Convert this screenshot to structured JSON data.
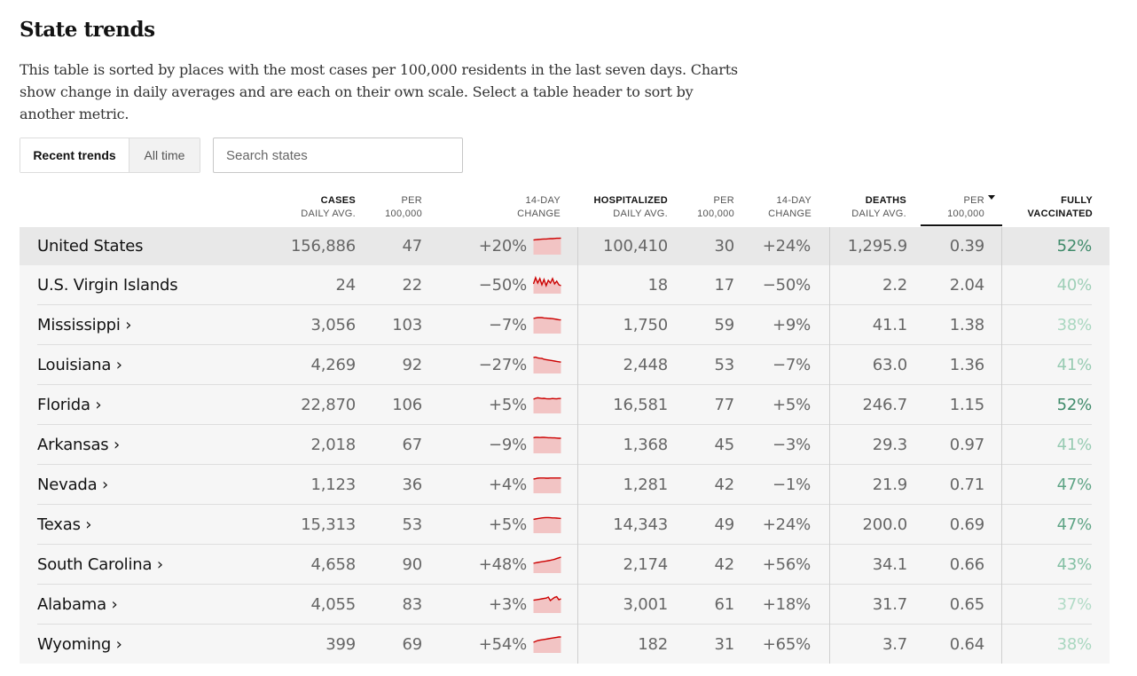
{
  "title": "State trends",
  "intro": "This table is sorted by places with the most cases per 100,000 residents in the last seven days. Charts show change in daily averages and are each on their own scale. Select a table header to sort by another metric.",
  "toggle": {
    "recent": "Recent trends",
    "all_time": "All time"
  },
  "search": {
    "placeholder": "Search states"
  },
  "headers": {
    "cases_1": "Cases",
    "cases_2": "Daily avg.",
    "per1_1": "Per",
    "per1_2": "100,000",
    "chg1_1": "14-day",
    "chg1_2": "change",
    "hosp_1": "Hospitalized",
    "hosp_2": "Daily avg.",
    "per2_1": "Per",
    "per2_2": "100,000",
    "chg2_1": "14-day",
    "chg2_2": "change",
    "deaths_1": "Deaths",
    "deaths_2": "Daily avg.",
    "per3_1": "Per",
    "per3_2": "100,000",
    "vax_1": "Fully",
    "vax_2": "vaccinated"
  },
  "colors": {
    "spark_line": "#cc0000",
    "spark_fill": "#f2c4c4"
  },
  "rows": [
    {
      "name": "United States",
      "cases": "156,886",
      "cases_per": "47",
      "cases_chg": "+20%",
      "hosp": "100,410",
      "hosp_per": "30",
      "hosp_chg": "+24%",
      "deaths": "1,295.9",
      "deaths_per": "0.39",
      "vax": "52%",
      "vax_color": "#3f8a6a",
      "trend": [
        0.82,
        0.84,
        0.85,
        0.86,
        0.87,
        0.88,
        0.88,
        0.89,
        0.9,
        0.9,
        0.91,
        0.92,
        0.92,
        0.93
      ]
    },
    {
      "name": "U.S. Virgin Islands",
      "cases": "24",
      "cases_per": "22",
      "cases_chg": "−50%",
      "hosp": "18",
      "hosp_per": "17",
      "hosp_chg": "−50%",
      "deaths": "2.2",
      "deaths_per": "2.04",
      "vax": "40%",
      "vax_color": "#9ecfb7",
      "trend": [
        0.55,
        0.9,
        0.6,
        0.85,
        0.5,
        0.8,
        0.45,
        0.75,
        0.6,
        0.85,
        0.55,
        0.7,
        0.5,
        0.45
      ]
    },
    {
      "name": "Mississippi ›",
      "cases": "3,056",
      "cases_per": "103",
      "cases_chg": "−7%",
      "hosp": "1,750",
      "hosp_per": "59",
      "hosp_chg": "+9%",
      "deaths": "41.1",
      "deaths_per": "1.38",
      "vax": "38%",
      "vax_color": "#a9d7c0",
      "trend": [
        0.85,
        0.88,
        0.9,
        0.9,
        0.9,
        0.88,
        0.87,
        0.86,
        0.85,
        0.84,
        0.82,
        0.8,
        0.78,
        0.77
      ]
    },
    {
      "name": "Louisiana ›",
      "cases": "4,269",
      "cases_per": "92",
      "cases_chg": "−27%",
      "hosp": "2,448",
      "hosp_per": "53",
      "hosp_chg": "−7%",
      "deaths": "63.0",
      "deaths_per": "1.36",
      "vax": "41%",
      "vax_color": "#97cbb2",
      "trend": [
        0.9,
        0.92,
        0.88,
        0.86,
        0.85,
        0.8,
        0.78,
        0.76,
        0.74,
        0.72,
        0.7,
        0.68,
        0.66,
        0.64
      ]
    },
    {
      "name": "Florida ›",
      "cases": "22,870",
      "cases_per": "106",
      "cases_chg": "+5%",
      "hosp": "16,581",
      "hosp_per": "77",
      "hosp_chg": "+5%",
      "deaths": "246.7",
      "deaths_per": "1.15",
      "vax": "52%",
      "vax_color": "#3f8a6a",
      "trend": [
        0.8,
        0.85,
        0.88,
        0.86,
        0.84,
        0.85,
        0.83,
        0.82,
        0.82,
        0.84,
        0.83,
        0.82,
        0.84,
        0.84
      ]
    },
    {
      "name": "Arkansas ›",
      "cases": "2,018",
      "cases_per": "67",
      "cases_chg": "−9%",
      "hosp": "1,368",
      "hosp_per": "45",
      "hosp_chg": "−3%",
      "deaths": "29.3",
      "deaths_per": "0.97",
      "vax": "41%",
      "vax_color": "#97cbb2",
      "trend": [
        0.88,
        0.9,
        0.9,
        0.89,
        0.9,
        0.9,
        0.89,
        0.88,
        0.88,
        0.87,
        0.87,
        0.86,
        0.85,
        0.85
      ]
    },
    {
      "name": "Nevada ›",
      "cases": "1,123",
      "cases_per": "36",
      "cases_chg": "+4%",
      "hosp": "1,281",
      "hosp_per": "42",
      "hosp_chg": "−1%",
      "deaths": "21.9",
      "deaths_per": "0.71",
      "vax": "47%",
      "vax_color": "#5ea485",
      "trend": [
        0.8,
        0.82,
        0.85,
        0.86,
        0.86,
        0.86,
        0.85,
        0.85,
        0.86,
        0.86,
        0.86,
        0.86,
        0.86,
        0.86
      ]
    },
    {
      "name": "Texas ›",
      "cases": "15,313",
      "cases_per": "53",
      "cases_chg": "+5%",
      "hosp": "14,343",
      "hosp_per": "49",
      "hosp_chg": "+24%",
      "deaths": "200.0",
      "deaths_per": "0.69",
      "vax": "47%",
      "vax_color": "#5ea485",
      "trend": [
        0.78,
        0.8,
        0.82,
        0.84,
        0.86,
        0.87,
        0.88,
        0.88,
        0.87,
        0.86,
        0.86,
        0.85,
        0.84,
        0.83
      ]
    },
    {
      "name": "South Carolina ›",
      "cases": "4,658",
      "cases_per": "90",
      "cases_chg": "+48%",
      "hosp": "2,174",
      "hosp_per": "42",
      "hosp_chg": "+56%",
      "deaths": "34.1",
      "deaths_per": "0.66",
      "vax": "43%",
      "vax_color": "#84c0a4",
      "trend": [
        0.55,
        0.58,
        0.6,
        0.62,
        0.64,
        0.66,
        0.68,
        0.7,
        0.72,
        0.75,
        0.78,
        0.82,
        0.86,
        0.9
      ]
    },
    {
      "name": "Alabama ›",
      "cases": "4,055",
      "cases_per": "83",
      "cases_chg": "+3%",
      "hosp": "3,001",
      "hosp_per": "61",
      "hosp_chg": "+18%",
      "deaths": "31.7",
      "deaths_per": "0.65",
      "vax": "37%",
      "vax_color": "#b2dbc7",
      "trend": [
        0.72,
        0.74,
        0.76,
        0.78,
        0.8,
        0.82,
        0.84,
        0.9,
        0.7,
        0.8,
        0.88,
        0.92,
        0.75,
        0.8
      ]
    },
    {
      "name": "Wyoming ›",
      "cases": "399",
      "cases_per": "69",
      "cases_chg": "+54%",
      "hosp": "182",
      "hosp_per": "31",
      "hosp_chg": "+65%",
      "deaths": "3.7",
      "deaths_per": "0.64",
      "vax": "38%",
      "vax_color": "#a9d7c0",
      "trend": [
        0.6,
        0.65,
        0.7,
        0.72,
        0.74,
        0.76,
        0.78,
        0.8,
        0.82,
        0.84,
        0.86,
        0.88,
        0.9,
        0.9
      ]
    }
  ]
}
